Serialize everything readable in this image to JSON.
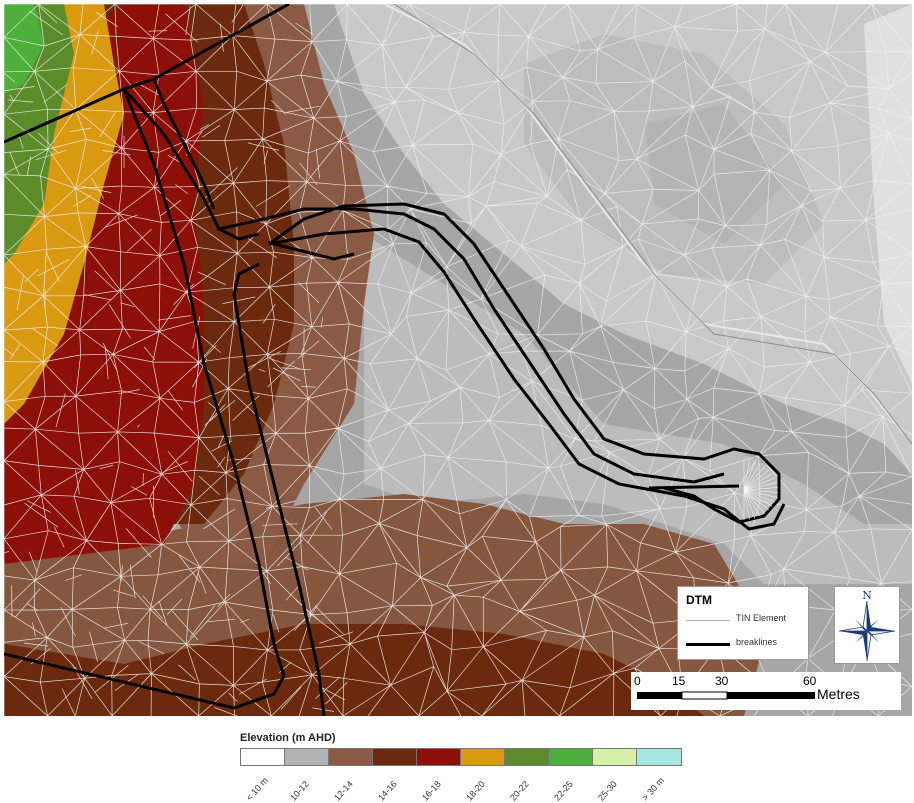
{
  "dtm_legend": {
    "title": "DTM",
    "items": [
      {
        "label": "TIN Element",
        "color": "#b0b0b0"
      },
      {
        "label": "breaklines",
        "color": "#000000"
      }
    ]
  },
  "north_arrow": {
    "label": "N"
  },
  "scale_bar": {
    "ticks": [
      "0",
      "15",
      "30",
      "60"
    ],
    "units": "Metres"
  },
  "elevation_legend": {
    "title": "Elevation (m AHD)",
    "classes": [
      {
        "label": "< 10 m",
        "color": "#ffffff"
      },
      {
        "label": "10-12",
        "color": "#b3b3b3"
      },
      {
        "label": "12-14",
        "color": "#8b5a44"
      },
      {
        "label": "14-16",
        "color": "#6b2a0e"
      },
      {
        "label": "16-18",
        "color": "#8c1008"
      },
      {
        "label": "18-20",
        "color": "#d99a12"
      },
      {
        "label": "20-22",
        "color": "#5c8c2a"
      },
      {
        "label": "22-25",
        "color": "#4cb03a"
      },
      {
        "label": "25-30",
        "color": "#d6f0a8"
      },
      {
        "label": "> 30 m",
        "color": "#a8e6e0"
      }
    ]
  },
  "colors": {
    "light_grey_zone": "#c8c8c8",
    "mid_grey_zone": "#a9a9a9",
    "tin_lines": "#f0f0f0",
    "breaklines": "#000000"
  }
}
